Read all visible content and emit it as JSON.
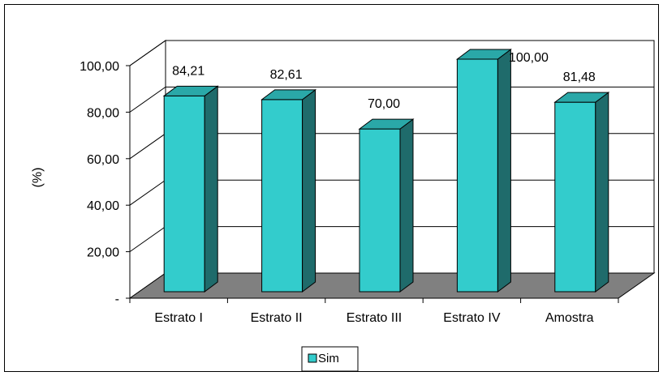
{
  "chart_data": {
    "type": "bar",
    "categories": [
      "Estrato I",
      "Estrato II",
      "Estrato III",
      "Estrato IV",
      "Amostra"
    ],
    "series": [
      {
        "name": "Sim",
        "values": [
          84.21,
          82.61,
          70.0,
          100.0,
          81.48
        ],
        "labels": [
          "84,21",
          "82,61",
          "70,00",
          "100,00",
          "81,48"
        ],
        "color": "#33CCCC"
      }
    ],
    "ylabel": "(%)",
    "ylim": [
      0,
      100
    ],
    "yticks": [
      "-",
      "20,00",
      "40,00",
      "60,00",
      "80,00",
      "100,00"
    ],
    "grid": true,
    "legend_position": "bottom",
    "style": "3d-column"
  }
}
